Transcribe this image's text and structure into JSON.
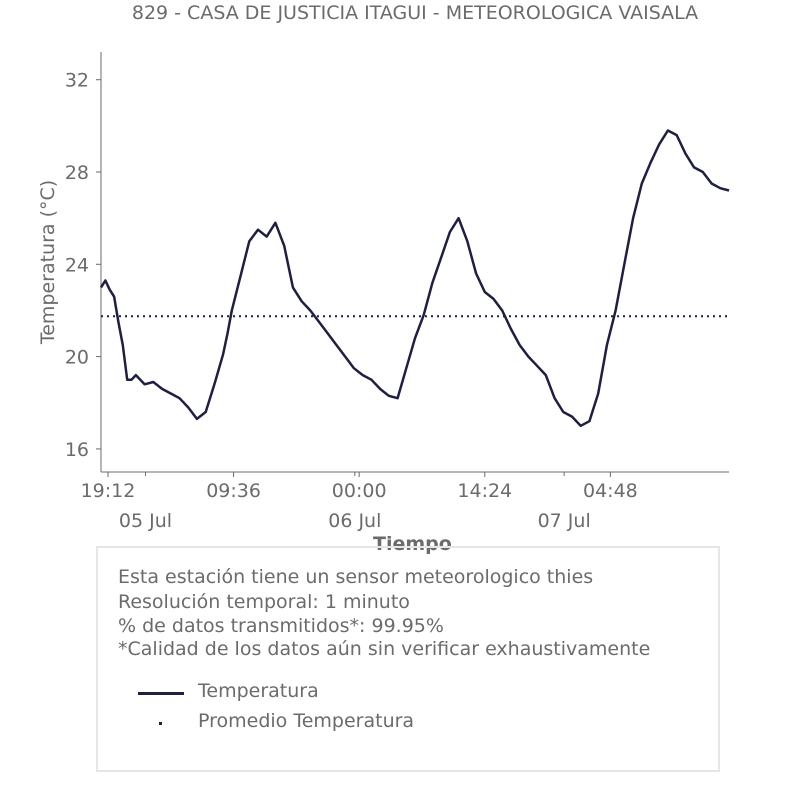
{
  "chart_data": {
    "type": "line",
    "title": "829 - CASA DE JUSTICIA ITAGUI - METEOROLOGICA VAISALA",
    "xlabel": "Tiempo",
    "ylabel": "Temperatura (°C)",
    "ylim": [
      15,
      33.2
    ],
    "yticks": [
      "16",
      "20",
      "24",
      "28",
      "32"
    ],
    "x_tick_labels": [
      "19:12",
      "09:36",
      "00:00",
      "14:24",
      "04:48"
    ],
    "x_date_labels": [
      "05 Jul",
      "06 Jul",
      "07 Jul"
    ],
    "series": [
      {
        "name": "Temperatura",
        "color": "#1f1f3f",
        "x_hours": [
          0,
          0.5,
          1,
          1.5,
          2,
          2.5,
          3,
          3.5,
          4,
          5,
          6,
          7,
          8,
          9,
          10,
          11,
          12,
          13,
          14,
          14.5,
          15,
          16,
          17,
          18,
          19,
          20,
          21,
          22,
          23,
          24,
          25,
          26,
          27,
          28,
          29,
          30,
          31,
          32,
          33,
          34,
          35,
          36,
          37,
          38,
          39,
          40,
          41,
          42,
          43,
          44,
          45,
          46,
          47,
          48,
          49,
          50,
          51,
          52,
          53,
          54,
          55,
          56,
          57,
          58,
          59,
          60,
          61,
          62,
          63,
          64,
          65,
          66,
          67,
          68,
          69,
          70,
          71,
          72
        ],
        "y": [
          23.0,
          23.3,
          22.9,
          22.6,
          21.5,
          20.5,
          19.0,
          19.0,
          19.2,
          18.8,
          18.9,
          18.6,
          18.4,
          18.2,
          17.8,
          17.3,
          17.6,
          18.8,
          20.1,
          21.0,
          22.0,
          23.5,
          25.0,
          25.5,
          25.2,
          25.8,
          24.8,
          23.0,
          22.4,
          22.0,
          21.5,
          21.0,
          20.5,
          20.0,
          19.5,
          19.2,
          19.0,
          18.6,
          18.3,
          18.2,
          19.5,
          20.8,
          21.8,
          23.2,
          24.3,
          25.4,
          26.0,
          25.0,
          23.6,
          22.8,
          22.5,
          22.0,
          21.2,
          20.5,
          20.0,
          19.6,
          19.2,
          18.2,
          17.6,
          17.4,
          17.0,
          17.2,
          18.4,
          20.5,
          22.0,
          24.0,
          26.0,
          27.5,
          28.4,
          29.2,
          29.8,
          29.6,
          28.8,
          28.2,
          28.0,
          27.5,
          27.3,
          27.2
        ],
        "x_end_hours": 72
      },
      {
        "name": "Promedio Temperatura",
        "color": "#1f1f3f",
        "value": 21.75
      }
    ],
    "x_tick_hours": [
      0.8,
      15.2,
      29.6,
      44.0,
      58.4
    ],
    "x_date_hours": [
      4.8,
      28.8,
      52.8
    ],
    "grid": false
  },
  "info": {
    "lines": [
      "Esta estación tiene un sensor meteorologico thies",
      "Resolución temporal: 1 minuto",
      "% de datos transmitidos*: 99.95%",
      "*Calidad de los datos aún sin verificar exhaustivamente"
    ]
  }
}
